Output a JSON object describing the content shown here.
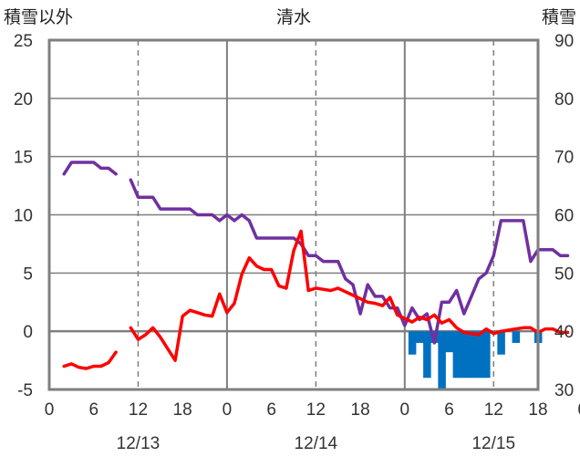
{
  "chart_data": {
    "type": "line",
    "title": "清水",
    "left_axis_title": "積雪以外",
    "right_axis_title": "積雪",
    "left_ylim": [
      -5,
      25
    ],
    "left_yticks": [
      -5,
      0,
      5,
      10,
      15,
      20,
      25
    ],
    "right_ylim": [
      30,
      90
    ],
    "right_yticks": [
      30,
      40,
      50,
      60,
      70,
      80,
      90
    ],
    "x_range_hours": [
      0,
      66
    ],
    "x_tick_labels": [
      "0",
      "6",
      "12",
      "18",
      "0",
      "6",
      "12",
      "18",
      "0",
      "6",
      "12",
      "18",
      "0"
    ],
    "date_labels": [
      {
        "hour": 12,
        "label": "12/13"
      },
      {
        "hour": 36,
        "label": "12/14"
      },
      {
        "hour": 60,
        "label": "12/15"
      }
    ],
    "day_boundaries": [
      24,
      48
    ],
    "noon_lines": [
      12,
      36,
      60
    ],
    "grid": "horizontal major, dashed vertical at noon",
    "series": [
      {
        "color": "#7030a0",
        "axis": "left",
        "segments": [
          [
            [
              2,
              13.5
            ],
            [
              3,
              14.5
            ],
            [
              4,
              14.5
            ],
            [
              5,
              14.5
            ],
            [
              6,
              14.5
            ],
            [
              7,
              14
            ],
            [
              8,
              14
            ],
            [
              9,
              13.5
            ]
          ],
          [
            [
              11,
              13
            ],
            [
              12,
              11.5
            ],
            [
              13,
              11.5
            ],
            [
              14,
              11.5
            ],
            [
              15,
              10.5
            ],
            [
              16,
              10.5
            ],
            [
              17,
              10.5
            ],
            [
              18,
              10.5
            ],
            [
              19,
              10.5
            ],
            [
              20,
              10
            ],
            [
              21,
              10
            ],
            [
              22,
              10
            ],
            [
              23,
              9.5
            ],
            [
              24,
              10
            ],
            [
              25,
              9.5
            ],
            [
              26,
              10
            ],
            [
              27,
              9.5
            ],
            [
              28,
              8
            ],
            [
              29,
              8
            ],
            [
              30,
              8
            ],
            [
              31,
              8
            ],
            [
              32,
              8
            ],
            [
              33,
              8
            ],
            [
              34,
              7.5
            ],
            [
              35,
              6.5
            ],
            [
              36,
              6.5
            ],
            [
              37,
              6
            ],
            [
              38,
              6
            ],
            [
              39,
              6
            ],
            [
              40,
              4.5
            ],
            [
              41,
              4
            ],
            [
              42,
              1.5
            ],
            [
              43,
              4
            ],
            [
              44,
              3
            ],
            [
              45,
              3
            ],
            [
              46,
              2
            ],
            [
              47,
              2
            ],
            [
              48,
              0.5
            ],
            [
              49,
              2
            ],
            [
              50,
              1
            ],
            [
              51,
              1.5
            ],
            [
              52,
              -1
            ],
            [
              53,
              2.5
            ],
            [
              54,
              2.5
            ],
            [
              55,
              3.5
            ],
            [
              56,
              1.5
            ],
            [
              57,
              3
            ],
            [
              58,
              4.5
            ],
            [
              59,
              5
            ],
            [
              60,
              6.5
            ],
            [
              61,
              9.5
            ],
            [
              62,
              9.5
            ],
            [
              63,
              9.5
            ],
            [
              64,
              9.5
            ],
            [
              65,
              6
            ],
            [
              66,
              7
            ],
            [
              67,
              7
            ],
            [
              68,
              7
            ],
            [
              69,
              6.5
            ],
            [
              70,
              6.5
            ]
          ]
        ]
      },
      {
        "color": "#ff0000",
        "axis": "left",
        "segments": [
          [
            [
              2,
              -3
            ],
            [
              3,
              -2.8
            ],
            [
              4,
              -3.1
            ],
            [
              5,
              -3.2
            ],
            [
              6,
              -3
            ],
            [
              7,
              -3
            ],
            [
              8,
              -2.7
            ],
            [
              9,
              -1.8
            ]
          ],
          [
            [
              11,
              0.3
            ],
            [
              12,
              -0.7
            ],
            [
              13,
              -0.3
            ],
            [
              14,
              0.3
            ],
            [
              15,
              -0.5
            ],
            [
              16,
              -1.5
            ],
            [
              17,
              -2.5
            ],
            [
              18,
              1.3
            ],
            [
              19,
              1.8
            ],
            [
              20,
              1.6
            ],
            [
              21,
              1.4
            ],
            [
              22,
              1.3
            ],
            [
              23,
              3.2
            ],
            [
              24,
              1.6
            ],
            [
              25,
              2.4
            ],
            [
              26,
              4.9
            ],
            [
              27,
              6.3
            ],
            [
              28,
              5.6
            ],
            [
              29,
              5.3
            ],
            [
              30,
              5.3
            ],
            [
              31,
              3.9
            ],
            [
              32,
              3.7
            ],
            [
              33,
              6.9
            ],
            [
              34,
              8.6
            ],
            [
              35,
              3.5
            ],
            [
              36,
              3.7
            ],
            [
              37,
              3.6
            ],
            [
              38,
              3.5
            ],
            [
              39,
              3.7
            ],
            [
              40,
              3.4
            ],
            [
              41,
              3.1
            ],
            [
              42,
              2.8
            ],
            [
              43,
              2.5
            ],
            [
              44,
              2.4
            ],
            [
              45,
              2.2
            ],
            [
              46,
              2.9
            ],
            [
              47,
              1.4
            ],
            [
              48,
              1.1
            ],
            [
              49,
              0.8
            ],
            [
              50,
              1.2
            ],
            [
              51,
              1.0
            ],
            [
              52,
              1.4
            ],
            [
              53,
              0.7
            ],
            [
              54,
              1.0
            ],
            [
              55,
              0.3
            ],
            [
              56,
              -0.1
            ],
            [
              57,
              -0.2
            ],
            [
              58,
              -0.3
            ],
            [
              59,
              0.2
            ],
            [
              60,
              -0.2
            ],
            [
              61,
              0
            ],
            [
              62,
              0.1
            ],
            [
              63,
              0.2
            ],
            [
              64,
              0.3
            ],
            [
              65,
              0.3
            ],
            [
              66,
              -0.1
            ],
            [
              67,
              0.2
            ],
            [
              68,
              0.2
            ],
            [
              69,
              -0.1
            ],
            [
              70,
              -0.1
            ]
          ]
        ]
      },
      {
        "type": "bar",
        "color": "#0070c0",
        "axis": "left",
        "baseline": 0,
        "bars": [
          [
            49,
            -2
          ],
          [
            50,
            -1
          ],
          [
            51,
            -4
          ],
          [
            52,
            -1
          ],
          [
            53,
            -5
          ],
          [
            54,
            -1.8
          ],
          [
            55,
            -4
          ],
          [
            56,
            -4
          ],
          [
            57,
            -4
          ],
          [
            58,
            -4
          ],
          [
            59,
            -4
          ],
          [
            61,
            -2
          ],
          [
            63,
            -1
          ],
          [
            66,
            -1
          ]
        ]
      }
    ]
  }
}
